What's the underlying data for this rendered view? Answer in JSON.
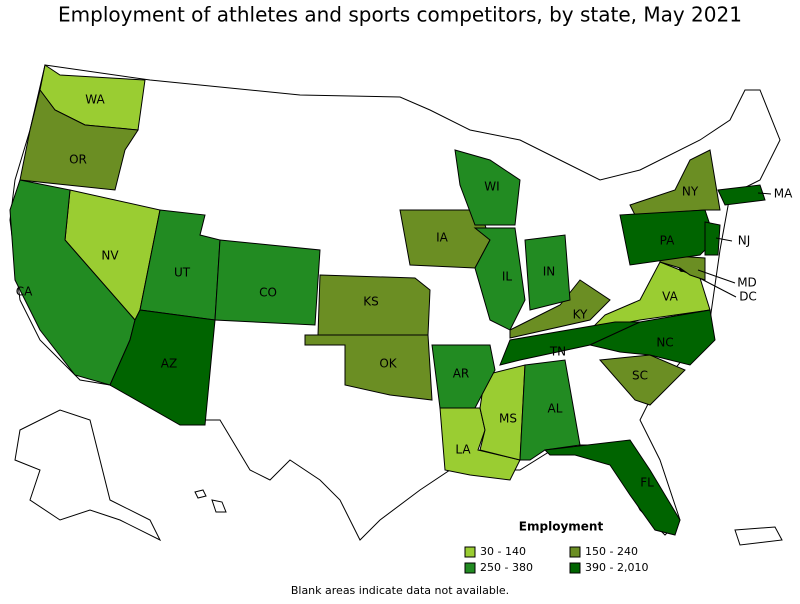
{
  "title": "Employment of athletes and sports competitors, by state, May 2021",
  "legend": {
    "title": "Employment",
    "items": [
      {
        "label": "30 - 140",
        "color": "#9acd32",
        "states": [
          "WA",
          "NV",
          "VA",
          "LA",
          "MS",
          "DC"
        ]
      },
      {
        "label": "150 - 240",
        "color": "#6b8e23",
        "states": [
          "OR",
          "KS",
          "OK",
          "IA",
          "KY",
          "NY",
          "SC",
          "MD"
        ]
      },
      {
        "label": "250 - 380",
        "color": "#228b22",
        "states": [
          "CA",
          "UT",
          "CO",
          "WI",
          "IL",
          "IN",
          "AR",
          "AL"
        ]
      },
      {
        "label": "390 - 2,010",
        "color": "#006400",
        "states": [
          "AZ",
          "TN",
          "NC",
          "FL",
          "PA",
          "NJ",
          "MA"
        ]
      }
    ]
  },
  "note": "Blank areas indicate data not available."
}
